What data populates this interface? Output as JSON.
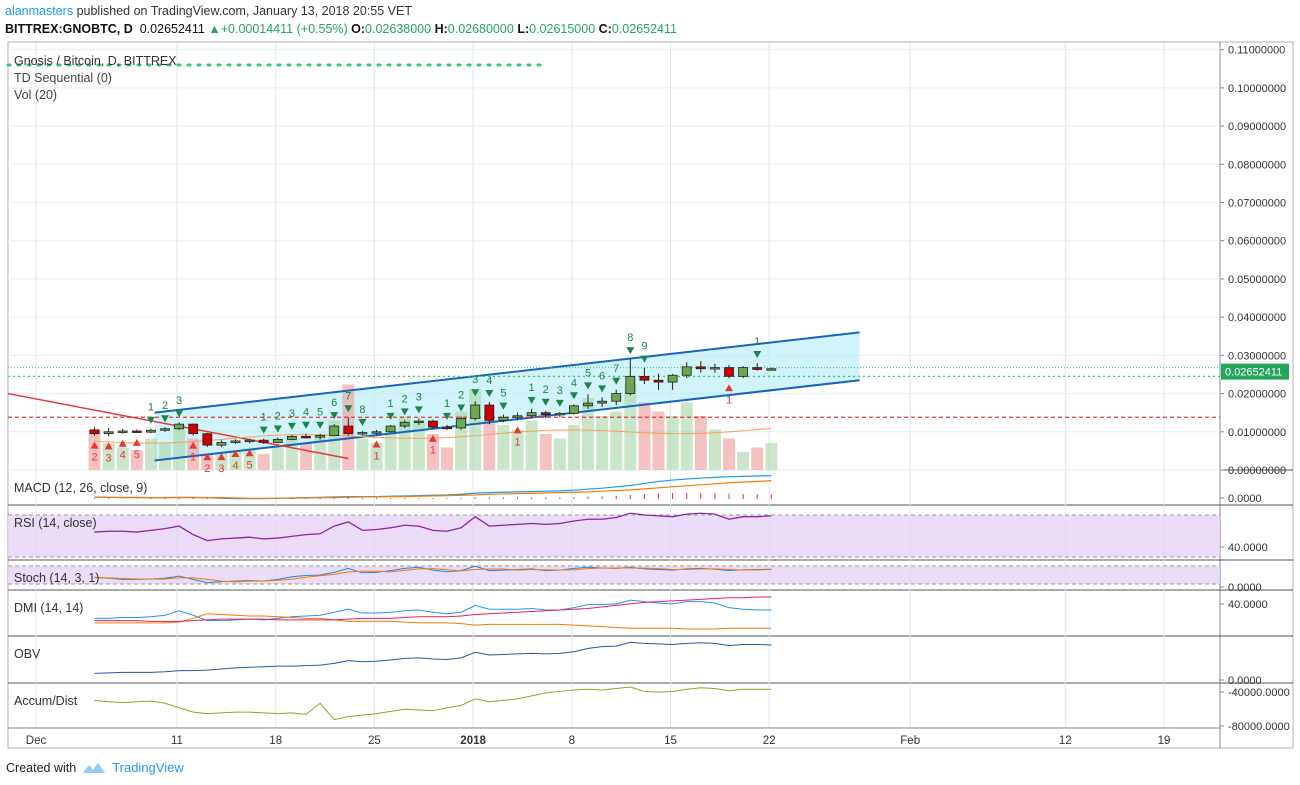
{
  "header": {
    "user": "alanmasters",
    "published": "published on TradingView.com, January 13, 2018 20:55 VET",
    "symbol": "BITTREX:GNOBTC, D",
    "last": "0.02652411",
    "change": "+0.00014411 (+0.55%)",
    "open_label": "O:",
    "open": "0.02638000",
    "high_label": "H:",
    "high": "0.02680000",
    "low_label": "L:",
    "low": "0.02615000",
    "close_label": "C:",
    "close": "0.02652411"
  },
  "legend": {
    "main": "Gnosis / Bitcoin, D, BITTREX",
    "td": "TD Sequential (0)",
    "vol": "Vol (20)"
  },
  "panes": {
    "macd": "MACD (12, 26, close, 9)",
    "rsi": "RSI (14, close)",
    "stoch": "Stoch (14, 3, 1)",
    "dmi": "DMI (14, 14)",
    "obv": "OBV",
    "accum": "Accum/Dist"
  },
  "footer": {
    "created": "Created with",
    "brand": "TradingView"
  },
  "colors": {
    "up": "#26a65b",
    "down": "#d32f2f",
    "channel": "#1565c0",
    "channel_fill": "#b3ecf7",
    "rsi_band": "#e6d3f5",
    "price_tag": "#26a65b"
  },
  "chart_data": {
    "type": "candlestick",
    "title": "Gnosis / Bitcoin, D, BITTREX",
    "y_axis": {
      "ylim": [
        0.0,
        0.112
      ],
      "ticks": [
        "0.11000000",
        "0.10000000",
        "0.09000000",
        "0.08000000",
        "0.07000000",
        "0.06000000",
        "0.05000000",
        "0.04000000",
        "0.03000000",
        "0.02000000",
        "0.01000000",
        "0.00000000"
      ]
    },
    "x_axis": {
      "ticks": [
        {
          "label": "Dec",
          "day": 0
        },
        {
          "label": "11",
          "day": 10
        },
        {
          "label": "18",
          "day": 17
        },
        {
          "label": "25",
          "day": 24
        },
        {
          "label": "2018",
          "day": 31,
          "bold": true
        },
        {
          "label": "8",
          "day": 38
        },
        {
          "label": "15",
          "day": 45
        },
        {
          "label": "22",
          "day": 52
        },
        {
          "label": "Feb",
          "day": 62
        },
        {
          "label": "12",
          "day": 73
        },
        {
          "label": "19",
          "day": 80
        }
      ]
    },
    "last_price_label": "0.02652411",
    "candles": [
      {
        "o": 0.0105,
        "h": 0.0112,
        "l": 0.009,
        "c": 0.0095
      },
      {
        "o": 0.0095,
        "h": 0.011,
        "l": 0.0088,
        "c": 0.01
      },
      {
        "o": 0.01,
        "h": 0.0108,
        "l": 0.0095,
        "c": 0.0102
      },
      {
        "o": 0.0102,
        "h": 0.0106,
        "l": 0.0097,
        "c": 0.0099
      },
      {
        "o": 0.0099,
        "h": 0.0108,
        "l": 0.0096,
        "c": 0.0104
      },
      {
        "o": 0.0104,
        "h": 0.0112,
        "l": 0.01,
        "c": 0.0108
      },
      {
        "o": 0.0108,
        "h": 0.0125,
        "l": 0.0105,
        "c": 0.012
      },
      {
        "o": 0.012,
        "h": 0.0122,
        "l": 0.009,
        "c": 0.0095
      },
      {
        "o": 0.0095,
        "h": 0.0097,
        "l": 0.006,
        "c": 0.0065
      },
      {
        "o": 0.0065,
        "h": 0.0078,
        "l": 0.006,
        "c": 0.0072
      },
      {
        "o": 0.0072,
        "h": 0.008,
        "l": 0.0068,
        "c": 0.0076
      },
      {
        "o": 0.0076,
        "h": 0.0082,
        "l": 0.007,
        "c": 0.0078
      },
      {
        "o": 0.0078,
        "h": 0.0082,
        "l": 0.0068,
        "c": 0.0072
      },
      {
        "o": 0.0072,
        "h": 0.0085,
        "l": 0.007,
        "c": 0.008
      },
      {
        "o": 0.008,
        "h": 0.0092,
        "l": 0.0078,
        "c": 0.0088
      },
      {
        "o": 0.0088,
        "h": 0.0095,
        "l": 0.0082,
        "c": 0.0086
      },
      {
        "o": 0.0086,
        "h": 0.0095,
        "l": 0.008,
        "c": 0.009
      },
      {
        "o": 0.009,
        "h": 0.012,
        "l": 0.0088,
        "c": 0.0115
      },
      {
        "o": 0.0115,
        "h": 0.0138,
        "l": 0.009,
        "c": 0.0095
      },
      {
        "o": 0.0095,
        "h": 0.0102,
        "l": 0.009,
        "c": 0.0098
      },
      {
        "o": 0.0098,
        "h": 0.0105,
        "l": 0.0093,
        "c": 0.01
      },
      {
        "o": 0.01,
        "h": 0.0118,
        "l": 0.0098,
        "c": 0.0115
      },
      {
        "o": 0.0115,
        "h": 0.013,
        "l": 0.011,
        "c": 0.0125
      },
      {
        "o": 0.0125,
        "h": 0.0135,
        "l": 0.0118,
        "c": 0.0128
      },
      {
        "o": 0.0128,
        "h": 0.0132,
        "l": 0.0108,
        "c": 0.0112
      },
      {
        "o": 0.0112,
        "h": 0.0118,
        "l": 0.0105,
        "c": 0.011
      },
      {
        "o": 0.011,
        "h": 0.014,
        "l": 0.0105,
        "c": 0.0135
      },
      {
        "o": 0.0135,
        "h": 0.018,
        "l": 0.013,
        "c": 0.017
      },
      {
        "o": 0.017,
        "h": 0.0178,
        "l": 0.012,
        "c": 0.013
      },
      {
        "o": 0.013,
        "h": 0.0145,
        "l": 0.0125,
        "c": 0.0138
      },
      {
        "o": 0.0138,
        "h": 0.015,
        "l": 0.013,
        "c": 0.0142
      },
      {
        "o": 0.0142,
        "h": 0.016,
        "l": 0.0135,
        "c": 0.015
      },
      {
        "o": 0.015,
        "h": 0.0155,
        "l": 0.0135,
        "c": 0.0145
      },
      {
        "o": 0.0145,
        "h": 0.0152,
        "l": 0.0138,
        "c": 0.0148
      },
      {
        "o": 0.0148,
        "h": 0.0172,
        "l": 0.0145,
        "c": 0.0168
      },
      {
        "o": 0.0168,
        "h": 0.0198,
        "l": 0.016,
        "c": 0.0175
      },
      {
        "o": 0.0175,
        "h": 0.019,
        "l": 0.0165,
        "c": 0.018
      },
      {
        "o": 0.018,
        "h": 0.021,
        "l": 0.017,
        "c": 0.02
      },
      {
        "o": 0.02,
        "h": 0.029,
        "l": 0.0195,
        "c": 0.0245
      },
      {
        "o": 0.0245,
        "h": 0.0268,
        "l": 0.0225,
        "c": 0.0235
      },
      {
        "o": 0.0235,
        "h": 0.0252,
        "l": 0.021,
        "c": 0.023
      },
      {
        "o": 0.023,
        "h": 0.0252,
        "l": 0.021,
        "c": 0.0248
      },
      {
        "o": 0.0248,
        "h": 0.0282,
        "l": 0.024,
        "c": 0.027
      },
      {
        "o": 0.027,
        "h": 0.0285,
        "l": 0.0255,
        "c": 0.0265
      },
      {
        "o": 0.0265,
        "h": 0.0278,
        "l": 0.0255,
        "c": 0.0268
      },
      {
        "o": 0.0268,
        "h": 0.0275,
        "l": 0.024,
        "c": 0.0245
      },
      {
        "o": 0.0245,
        "h": 0.0272,
        "l": 0.024,
        "c": 0.0268
      },
      {
        "o": 0.0268,
        "h": 0.028,
        "l": 0.026,
        "c": 0.0263
      },
      {
        "o": 0.0264,
        "h": 0.0268,
        "l": 0.0262,
        "c": 0.0265
      }
    ],
    "volume_rel": [
      0.45,
      0.3,
      0.25,
      0.22,
      0.35,
      0.3,
      0.5,
      0.35,
      0.18,
      0.2,
      0.22,
      0.24,
      0.18,
      0.25,
      0.35,
      0.3,
      0.4,
      0.55,
      0.95,
      0.35,
      0.3,
      0.45,
      0.6,
      0.55,
      0.4,
      0.25,
      0.65,
      0.9,
      0.55,
      0.5,
      0.45,
      0.55,
      0.4,
      0.35,
      0.5,
      0.8,
      0.6,
      0.65,
      0.95,
      0.75,
      0.65,
      0.6,
      0.75,
      0.6,
      0.45,
      0.35,
      0.2,
      0.25,
      0.3
    ],
    "td_counts": [
      {
        "i": 4,
        "label": "1",
        "dir": "up"
      },
      {
        "i": 5,
        "label": "2",
        "dir": "up"
      },
      {
        "i": 6,
        "label": "3",
        "dir": "up"
      },
      {
        "i": 0,
        "label": "2",
        "dir": "down"
      },
      {
        "i": 1,
        "label": "3",
        "dir": "down"
      },
      {
        "i": 2,
        "label": "4",
        "dir": "down"
      },
      {
        "i": 3,
        "label": "5",
        "dir": "down"
      },
      {
        "i": 7,
        "label": "1",
        "dir": "down"
      },
      {
        "i": 8,
        "label": "2",
        "dir": "down"
      },
      {
        "i": 9,
        "label": "3",
        "dir": "down"
      },
      {
        "i": 10,
        "label": "4",
        "dir": "down"
      },
      {
        "i": 11,
        "label": "5",
        "dir": "down"
      },
      {
        "i": 12,
        "label": "1",
        "dir": "up"
      },
      {
        "i": 13,
        "label": "2",
        "dir": "up"
      },
      {
        "i": 14,
        "label": "3",
        "dir": "up"
      },
      {
        "i": 15,
        "label": "4",
        "dir": "up"
      },
      {
        "i": 16,
        "label": "5",
        "dir": "up"
      },
      {
        "i": 17,
        "label": "6",
        "dir": "up"
      },
      {
        "i": 18,
        "label": "7",
        "dir": "up"
      },
      {
        "i": 19,
        "label": "8",
        "dir": "up"
      },
      {
        "i": 20,
        "label": "1",
        "dir": "down"
      },
      {
        "i": 21,
        "label": "1",
        "dir": "up"
      },
      {
        "i": 22,
        "label": "2",
        "dir": "up"
      },
      {
        "i": 23,
        "label": "3",
        "dir": "up"
      },
      {
        "i": 24,
        "label": "1",
        "dir": "down"
      },
      {
        "i": 25,
        "label": "1",
        "dir": "up"
      },
      {
        "i": 26,
        "label": "2",
        "dir": "up"
      },
      {
        "i": 27,
        "label": "3",
        "dir": "up"
      },
      {
        "i": 28,
        "label": "4",
        "dir": "up"
      },
      {
        "i": 29,
        "label": "5",
        "dir": "up"
      },
      {
        "i": 30,
        "label": "1",
        "dir": "down"
      },
      {
        "i": 31,
        "label": "1",
        "dir": "up"
      },
      {
        "i": 32,
        "label": "2",
        "dir": "up"
      },
      {
        "i": 33,
        "label": "3",
        "dir": "up"
      },
      {
        "i": 34,
        "label": "4",
        "dir": "up"
      },
      {
        "i": 35,
        "label": "5",
        "dir": "up"
      },
      {
        "i": 36,
        "label": "6",
        "dir": "up"
      },
      {
        "i": 37,
        "label": "7",
        "dir": "up"
      },
      {
        "i": 38,
        "label": "8",
        "dir": "up"
      },
      {
        "i": 39,
        "label": "9",
        "dir": "up"
      },
      {
        "i": 45,
        "label": "1",
        "dir": "down"
      },
      {
        "i": 47,
        "label": "1",
        "dir": "up"
      }
    ],
    "channel": {
      "upper": [
        [
          6,
          0.015
        ],
        [
          56,
          0.036
        ]
      ],
      "lower": [
        [
          6,
          0.0025
        ],
        [
          56,
          0.0235
        ]
      ]
    },
    "downtrend_line": [
      [
        0,
        0.02
      ],
      [
        18,
        0.003
      ]
    ],
    "levels": [
      {
        "y": 0.0245,
        "color": "#2ecc71",
        "style": "dotted"
      },
      {
        "y": 0.0138,
        "color": "#e53935",
        "style": "dashed"
      },
      {
        "y": 0.0268,
        "color": "#2ecc71",
        "style": "thin"
      }
    ],
    "macd": {
      "label": "MACD (12, 26, close, 9)",
      "tick": "0.0000",
      "macd": [
        0.02,
        0.01,
        0.0,
        0.0,
        0.0,
        0.0,
        0.01,
        0.01,
        0.0,
        -0.02,
        -0.03,
        -0.03,
        -0.03,
        -0.02,
        -0.01,
        0.0,
        0.01,
        0.02,
        0.03,
        0.03,
        0.03,
        0.04,
        0.05,
        0.06,
        0.07,
        0.08,
        0.1,
        0.13,
        0.15,
        0.16,
        0.17,
        0.18,
        0.19,
        0.2,
        0.22,
        0.25,
        0.28,
        0.32,
        0.36,
        0.42,
        0.48,
        0.52,
        0.55,
        0.58,
        0.6,
        0.62,
        0.63,
        0.64,
        0.65
      ],
      "signal": [
        0.01,
        0.01,
        0.01,
        0.01,
        0.0,
        0.0,
        0.0,
        0.0,
        0.0,
        0.0,
        -0.01,
        -0.02,
        -0.02,
        -0.02,
        -0.02,
        -0.01,
        0.0,
        0.0,
        0.01,
        0.02,
        0.02,
        0.03,
        0.03,
        0.04,
        0.05,
        0.06,
        0.07,
        0.08,
        0.1,
        0.11,
        0.12,
        0.13,
        0.14,
        0.15,
        0.16,
        0.17,
        0.19,
        0.21,
        0.23,
        0.26,
        0.29,
        0.32,
        0.35,
        0.38,
        0.41,
        0.44,
        0.46,
        0.48,
        0.5
      ]
    },
    "rsi": {
      "label": "RSI (14, close)",
      "tick": "40.0000",
      "values": [
        48,
        49,
        49,
        48,
        50,
        52,
        55,
        45,
        38,
        40,
        41,
        42,
        40,
        41,
        43,
        45,
        46,
        55,
        60,
        50,
        51,
        53,
        56,
        55,
        50,
        49,
        53,
        66,
        55,
        56,
        57,
        58,
        57,
        58,
        61,
        63,
        63,
        65,
        70,
        68,
        67,
        66,
        69,
        70,
        69,
        63,
        66,
        66,
        67
      ]
    },
    "stoch": {
      "label": "Stoch (14, 3, 1)",
      "tick": "0.0000",
      "k": [
        40,
        35,
        30,
        30,
        32,
        35,
        45,
        30,
        15,
        20,
        22,
        25,
        22,
        30,
        42,
        48,
        50,
        62,
        80,
        60,
        62,
        70,
        80,
        85,
        72,
        65,
        70,
        90,
        70,
        72,
        75,
        78,
        70,
        72,
        80,
        85,
        82,
        80,
        85,
        78,
        75,
        72,
        78,
        80,
        76,
        70,
        74,
        75,
        76
      ],
      "d": [
        38,
        37,
        34,
        32,
        31,
        32,
        37,
        37,
        30,
        22,
        19,
        22,
        23,
        26,
        31,
        40,
        47,
        53,
        64,
        67,
        67,
        64,
        71,
        78,
        79,
        74,
        69,
        75,
        77,
        77,
        72,
        75,
        74,
        73,
        74,
        79,
        82,
        82,
        82,
        81,
        79,
        75,
        75,
        77,
        78,
        75,
        73,
        73,
        75
      ]
    },
    "dmi": {
      "label": "DMI (14, 14)",
      "tick": "40.0000",
      "plus": [
        28,
        28,
        29,
        29,
        30,
        32,
        38,
        32,
        25,
        25,
        26,
        27,
        26,
        28,
        30,
        31,
        32,
        36,
        40,
        35,
        35,
        36,
        38,
        39,
        36,
        34,
        36,
        45,
        40,
        40,
        40,
        41,
        39,
        39,
        42,
        46,
        46,
        47,
        52,
        50,
        48,
        47,
        50,
        50,
        48,
        42,
        40,
        39,
        39
      ],
      "minus": [
        22,
        22,
        22,
        22,
        22,
        22,
        23,
        28,
        34,
        33,
        32,
        31,
        31,
        30,
        29,
        28,
        28,
        26,
        24,
        24,
        24,
        24,
        23,
        22,
        22,
        22,
        21,
        19,
        20,
        20,
        20,
        20,
        20,
        20,
        19,
        18,
        17,
        16,
        15,
        15,
        15,
        15,
        14,
        14,
        14,
        15,
        15,
        15,
        15
      ],
      "adx": [
        25,
        25,
        25,
        25,
        24,
        24,
        24,
        25,
        26,
        27,
        27,
        27,
        27,
        26,
        26,
        26,
        26,
        26,
        27,
        28,
        28,
        28,
        29,
        30,
        30,
        30,
        31,
        33,
        34,
        35,
        36,
        37,
        38,
        39,
        40,
        41,
        43,
        45,
        47,
        49,
        50,
        51,
        52,
        53,
        54,
        55,
        55,
        56,
        56
      ]
    },
    "obv": {
      "label": "OBV",
      "tick": "0.0000",
      "values": [
        10,
        11,
        12,
        12,
        12,
        13,
        15,
        15,
        16,
        18,
        20,
        21,
        22,
        23,
        23,
        24,
        25,
        28,
        33,
        31,
        32,
        34,
        37,
        38,
        36,
        35,
        38,
        48,
        43,
        44,
        45,
        46,
        45,
        46,
        49,
        55,
        58,
        59,
        66,
        64,
        63,
        62,
        64,
        65,
        64,
        60,
        62,
        62,
        61
      ]
    },
    "accum": {
      "label": "Accum/Dist",
      "ticks": [
        "-40000.0000",
        "-80000.0000"
      ],
      "values": [
        -48000,
        -50000,
        -51000,
        -50000,
        -49000,
        -52000,
        -58000,
        -64000,
        -66000,
        -65000,
        -64000,
        -64000,
        -65000,
        -66000,
        -65000,
        -67000,
        -52000,
        -74000,
        -70000,
        -68000,
        -66000,
        -63000,
        -60000,
        -61000,
        -62000,
        -58000,
        -55000,
        -46000,
        -50000,
        -48000,
        -46000,
        -42000,
        -38000,
        -36000,
        -34000,
        -33000,
        -34000,
        -32000,
        -30000,
        -36000,
        -37000,
        -36000,
        -33000,
        -31000,
        -32000,
        -35000,
        -33000,
        -33000,
        -33000
      ]
    }
  }
}
